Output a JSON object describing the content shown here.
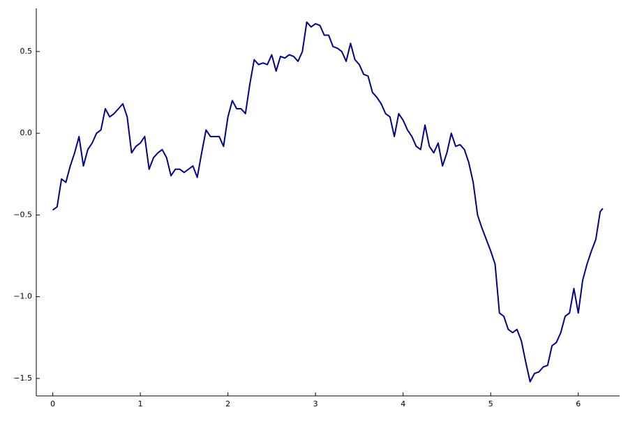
{
  "chart_data": {
    "type": "line",
    "x": [
      0,
      0.05,
      0.1,
      0.15,
      0.2,
      0.25,
      0.3,
      0.35,
      0.4,
      0.45,
      0.5,
      0.55,
      0.6,
      0.65,
      0.7,
      0.75,
      0.8,
      0.85,
      0.9,
      0.95,
      1.0,
      1.05,
      1.1,
      1.15,
      1.2,
      1.25,
      1.3,
      1.35,
      1.4,
      1.45,
      1.5,
      1.55,
      1.6,
      1.65,
      1.7,
      1.75,
      1.8,
      1.85,
      1.9,
      1.95,
      2.0,
      2.05,
      2.1,
      2.15,
      2.2,
      2.25,
      2.3,
      2.35,
      2.4,
      2.45,
      2.5,
      2.55,
      2.6,
      2.65,
      2.7,
      2.75,
      2.8,
      2.85,
      2.9,
      2.95,
      3.0,
      3.05,
      3.1,
      3.15,
      3.2,
      3.25,
      3.3,
      3.35,
      3.4,
      3.45,
      3.5,
      3.55,
      3.6,
      3.65,
      3.7,
      3.75,
      3.8,
      3.85,
      3.9,
      3.95,
      4.0,
      4.05,
      4.1,
      4.15,
      4.2,
      4.25,
      4.3,
      4.35,
      4.4,
      4.45,
      4.5,
      4.55,
      4.6,
      4.65,
      4.7,
      4.75,
      4.8,
      4.85,
      4.9,
      4.95,
      5.0,
      5.05,
      5.1,
      5.15,
      5.2,
      5.25,
      5.3,
      5.35,
      5.4,
      5.45,
      5.5,
      5.55,
      5.6,
      5.65,
      5.7,
      5.75,
      5.8,
      5.85,
      5.9,
      5.95,
      6.0,
      6.05,
      6.1,
      6.15,
      6.2,
      6.25,
      6.28
    ],
    "series": [
      {
        "color": "#00008b",
        "values": [
          -0.47,
          -0.45,
          -0.28,
          -0.3,
          -0.2,
          -0.12,
          -0.02,
          -0.2,
          -0.1,
          -0.06,
          0.0,
          0.02,
          0.15,
          0.1,
          0.12,
          0.15,
          0.18,
          0.1,
          -0.12,
          -0.08,
          -0.06,
          -0.02,
          -0.22,
          -0.15,
          -0.12,
          -0.1,
          -0.15,
          -0.26,
          -0.22,
          -0.22,
          -0.24,
          -0.22,
          -0.2,
          -0.27,
          -0.12,
          0.02,
          -0.02,
          -0.02,
          -0.02,
          -0.08,
          0.1,
          0.2,
          0.15,
          0.15,
          0.12,
          0.3,
          0.45,
          0.42,
          0.43,
          0.42,
          0.48,
          0.38,
          0.47,
          0.46,
          0.48,
          0.47,
          0.44,
          0.5,
          0.68,
          0.65,
          0.67,
          0.66,
          0.6,
          0.6,
          0.53,
          0.52,
          0.5,
          0.44,
          0.55,
          0.45,
          0.42,
          0.36,
          0.35,
          0.25,
          0.22,
          0.18,
          0.12,
          0.1,
          -0.02,
          0.12,
          0.08,
          0.02,
          -0.02,
          -0.08,
          -0.1,
          0.05,
          -0.08,
          -0.12,
          -0.06,
          -0.2,
          -0.12,
          0.0,
          -0.08,
          -0.07,
          -0.1,
          -0.18,
          -0.3,
          -0.5,
          -0.58,
          -0.65,
          -0.72,
          -0.8,
          -1.1,
          -1.12,
          -1.2,
          -1.22,
          -1.2,
          -1.27,
          -1.4,
          -1.52,
          -1.47,
          -1.46,
          -1.43,
          -1.42,
          -1.3,
          -1.28,
          -1.22,
          -1.12,
          -1.1,
          -0.95,
          -1.1,
          -0.9,
          -0.8,
          -0.72,
          -0.65,
          -0.48,
          -0.46
        ]
      }
    ],
    "xlim": [
      -0.188,
      6.472
    ],
    "xticks": [
      0,
      1,
      2,
      3,
      4,
      5,
      6
    ],
    "ylim": [
      -1.607,
      0.764
    ],
    "yticks": [
      {
        "value": -1.5,
        "label": "−1.5"
      },
      {
        "value": -1,
        "label": "−1.0"
      },
      {
        "value": -0.5,
        "label": "−0.5"
      },
      {
        "value": 0,
        "label": "0.0"
      },
      0.5
    ],
    "grid": false
  }
}
